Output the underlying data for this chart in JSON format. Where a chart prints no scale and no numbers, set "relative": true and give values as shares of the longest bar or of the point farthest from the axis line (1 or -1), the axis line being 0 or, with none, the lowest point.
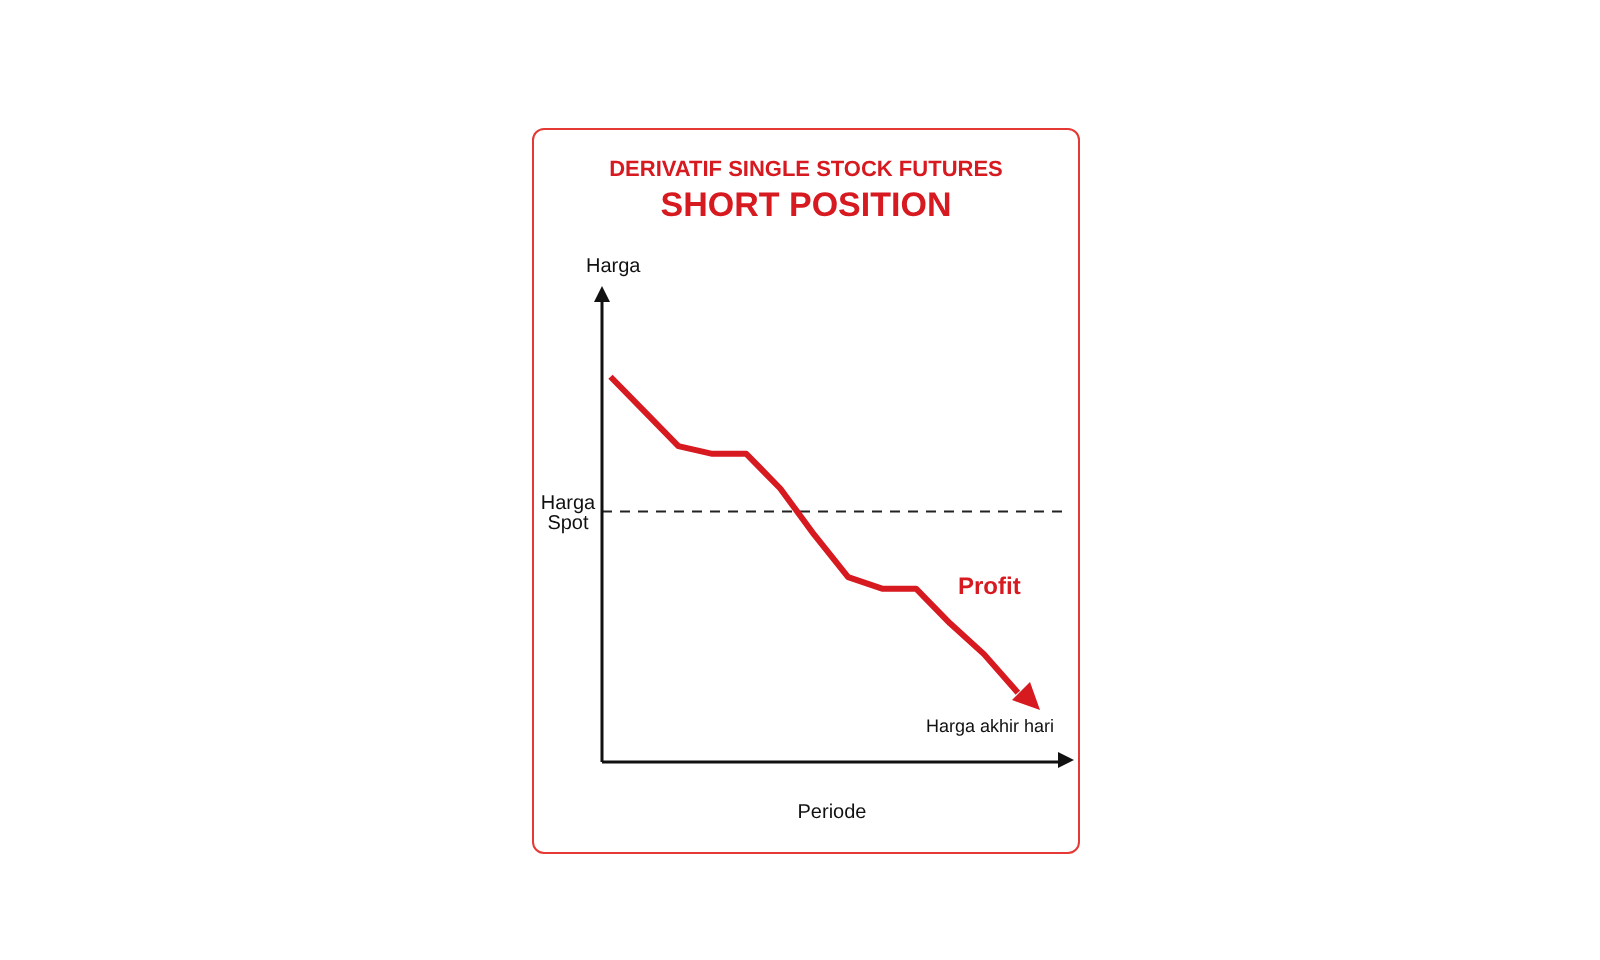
{
  "chart_data": {
    "type": "line",
    "title": "DERIVATIF SINGLE STOCK FUTURES",
    "subtitle": "SHORT POSITION",
    "xlabel": "Periode",
    "ylabel": "Harga",
    "relative": true,
    "categories": [
      null,
      null,
      null,
      null,
      null,
      null,
      null,
      null,
      null,
      null,
      null,
      null,
      null
    ],
    "series": [
      {
        "color": "#d71920",
        "values": [
          1.0,
          0.91,
          0.82,
          0.8,
          0.8,
          0.71,
          0.59,
          0.48,
          0.45,
          0.45,
          0.36,
          0.28,
          0.18
        ]
      }
    ],
    "ref_lines": [
      {
        "axis": "y",
        "value": 0.65,
        "label": "Harga Spot",
        "color": "#222222",
        "line_style": "dashed"
      }
    ],
    "annotations": [
      "Profit",
      "Harga akhir hari"
    ],
    "marker": "none",
    "line_style": "solid"
  }
}
